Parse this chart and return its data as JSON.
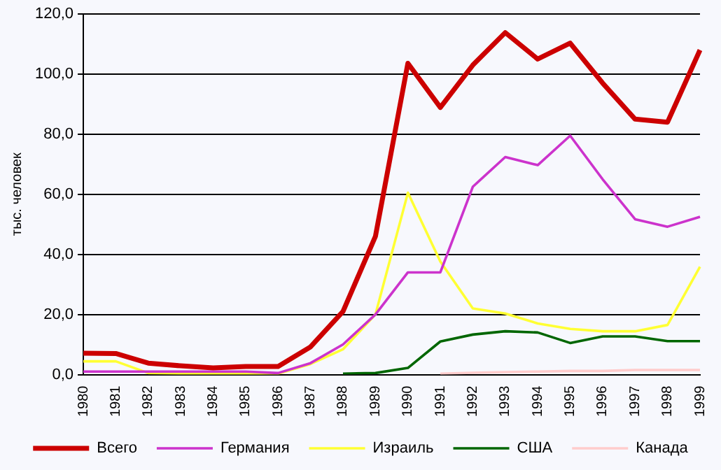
{
  "chart_data": {
    "type": "line",
    "ylabel": "тыс. человек",
    "categories": [
      "1980",
      "1981",
      "1982",
      "1983",
      "1984",
      "1985",
      "1986",
      "1987",
      "1988",
      "1989",
      "1990",
      "1991",
      "1992",
      "1993",
      "1994",
      "1995",
      "1996",
      "1997",
      "1998",
      "1999"
    ],
    "series": [
      {
        "name": "Всего",
        "color": "#cc0000",
        "values": [
          7.1,
          7,
          3.8,
          2.9,
          2.2,
          2.7,
          2.7,
          9.2,
          21,
          46,
          103.6,
          88.9,
          103,
          113.8,
          105,
          110.3,
          97,
          85,
          84,
          108
        ]
      },
      {
        "name": "Германия",
        "color": "#cc33cc",
        "values": [
          1,
          1,
          1,
          1,
          1,
          1,
          0.5,
          3.8,
          10,
          20,
          34,
          34,
          62.5,
          72.4,
          69.7,
          79.5,
          65,
          51.7,
          49.2,
          52.5
        ]
      },
      {
        "name": "Израиль",
        "color": "#ffff33",
        "values": [
          4.4,
          4.4,
          0.5,
          0.3,
          0.3,
          0.3,
          0.3,
          3.5,
          8.4,
          20,
          60.5,
          37.6,
          22,
          20.3,
          17,
          15.2,
          14.4,
          14.4,
          16.5,
          35.9
        ]
      },
      {
        "name": "США",
        "color": "#006600",
        "values": [
          null,
          null,
          null,
          null,
          null,
          null,
          null,
          null,
          0.3,
          0.5,
          2.2,
          11,
          13.3,
          14.4,
          14,
          10.5,
          12.7,
          12.7,
          11.1,
          11.1
        ]
      },
      {
        "name": "Канада",
        "color": "#ffcccc",
        "values": [
          null,
          null,
          null,
          null,
          null,
          null,
          null,
          null,
          null,
          null,
          null,
          0.3,
          0.6,
          0.8,
          1,
          1.2,
          1.2,
          1.5,
          1.5,
          1.5
        ]
      }
    ],
    "ylim": [
      0,
      120
    ],
    "yticks": [
      {
        "value": 0,
        "label": "0,0"
      },
      {
        "value": 20,
        "label": "20,0"
      },
      {
        "value": 40,
        "label": "40,0"
      },
      {
        "value": 60,
        "label": "60,0"
      },
      {
        "value": 80,
        "label": "80,0"
      },
      {
        "value": 100,
        "label": "100,0"
      },
      {
        "value": 120,
        "label": "120,0"
      }
    ],
    "grid": "y",
    "legend": "bottom",
    "marker": "none",
    "line_style": "solid"
  }
}
